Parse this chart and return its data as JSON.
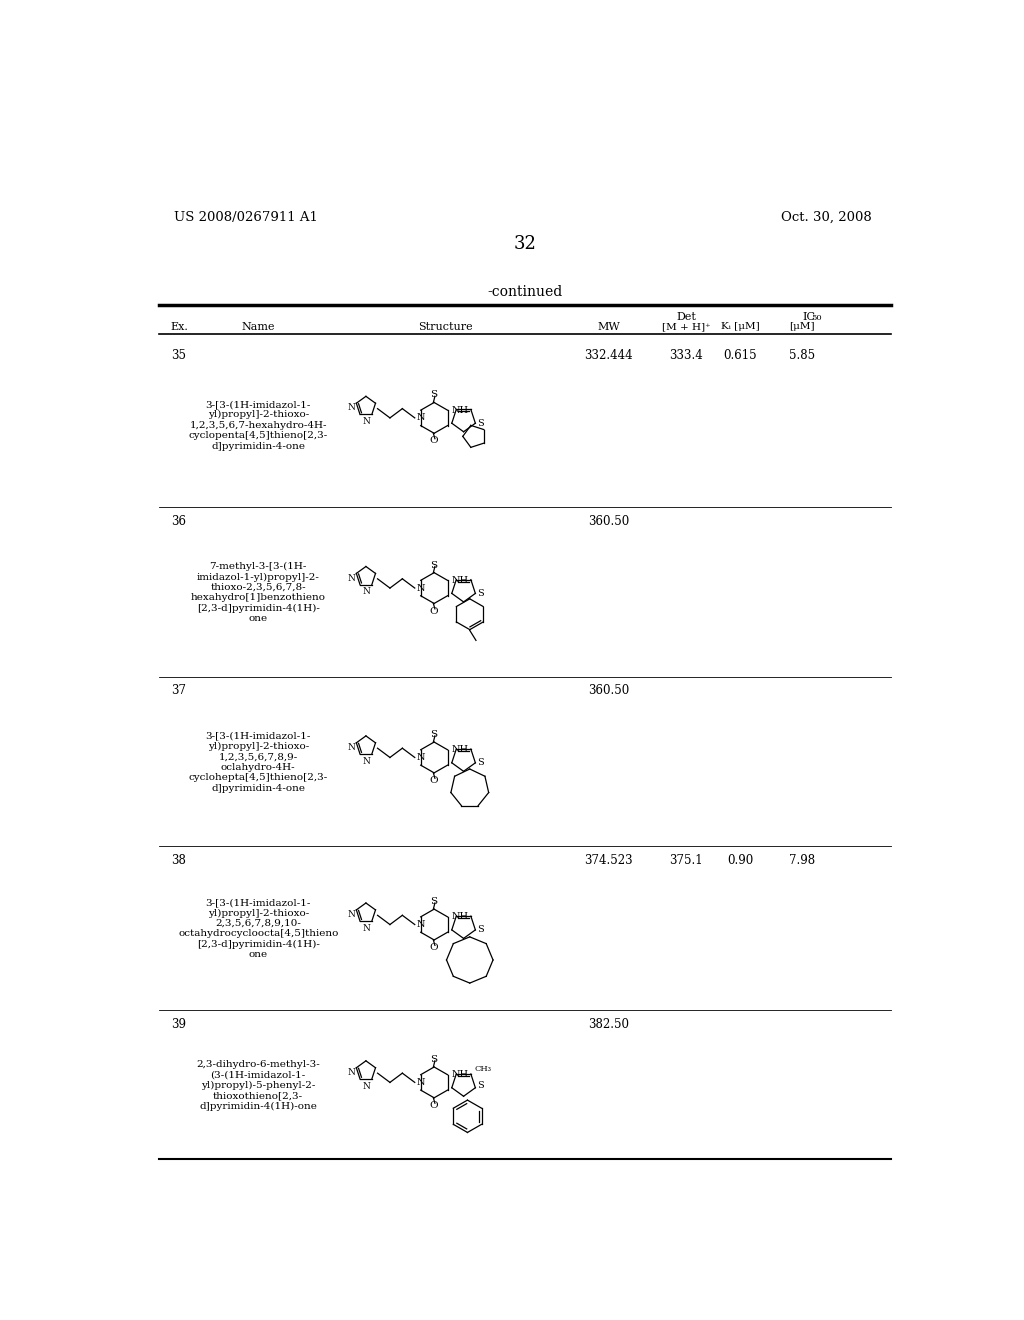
{
  "background_color": "#ffffff",
  "page_number": "32",
  "patent_number": "US 2008/0267911 A1",
  "patent_date": "Oct. 30, 2008",
  "continued_label": "-continued",
  "rows": [
    {
      "ex": "35",
      "name": "3-[3-(1H-imidazol-1-\nyl)propyl]-2-thioxo-\n1,2,3,5,6,7-hexahydro-4H-\ncyclopenta[4,5]thieno[2,3-\nd]pyrimidin-4-one",
      "mw": "332.444",
      "det": "333.4",
      "ki": "0.615",
      "ic50": "5.85"
    },
    {
      "ex": "36",
      "name": "7-methyl-3-[3-(1H-\nimidazol-1-yl)propyl]-2-\nthioxo-2,3,5,6,7,8-\nhexahydro[1]benzothieno\n[2,3-d]pyrimidin-4(1H)-\none",
      "mw": "360.50",
      "det": "",
      "ki": "",
      "ic50": ""
    },
    {
      "ex": "37",
      "name": "3-[3-(1H-imidazol-1-\nyl)propyl]-2-thioxo-\n1,2,3,5,6,7,8,9-\noclahydro-4H-\ncyclohepta[4,5]thieno[2,3-\nd]pyrimidin-4-one",
      "mw": "360.50",
      "det": "",
      "ki": "",
      "ic50": ""
    },
    {
      "ex": "38",
      "name": "3-[3-(1H-imidazol-1-\nyl)propyl]-2-thioxo-\n2,3,5,6,7,8,9,10-\noctahydrocycloocta[4,5]thieno\n[2,3-d]pyrimidin-4(1H)-\none",
      "mw": "374.523",
      "det": "375.1",
      "ki": "0.90",
      "ic50": "7.98"
    },
    {
      "ex": "39",
      "name": "2,3-dihydro-6-methyl-3-\n(3-(1H-imidazol-1-\nyl)propyl)-5-phenyl-2-\nthioxothieno[2,3-\nd]pyrimidin-4(1H)-one",
      "mw": "382.50",
      "det": "",
      "ki": "",
      "ic50": ""
    }
  ]
}
